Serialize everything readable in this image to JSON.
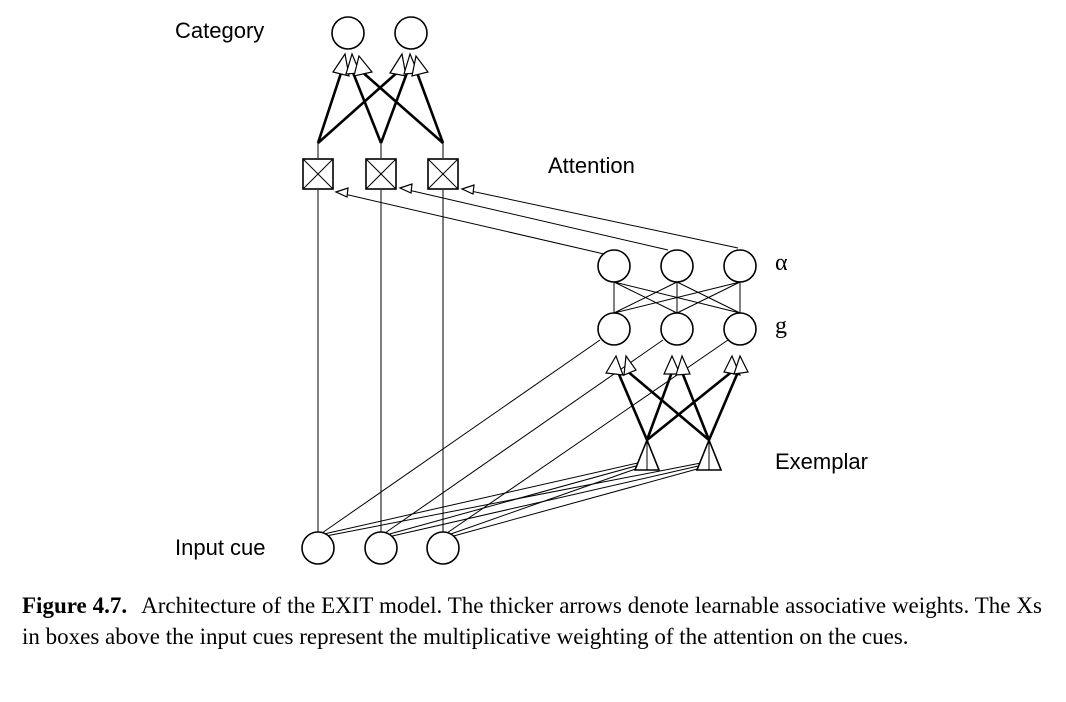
{
  "labels": {
    "category": "Category",
    "attention": "Attention",
    "alpha": "α",
    "g": "g",
    "exemplar": "Exemplar",
    "input_cue": "Input cue"
  },
  "caption": {
    "figure_number": "Figure 4.7.",
    "text": "Architecture of the EXIT model. The thicker arrows denote learnable associative weights. The Xs in boxes above the input cues represent the multiplicative weighting of the attention on the cues."
  }
}
